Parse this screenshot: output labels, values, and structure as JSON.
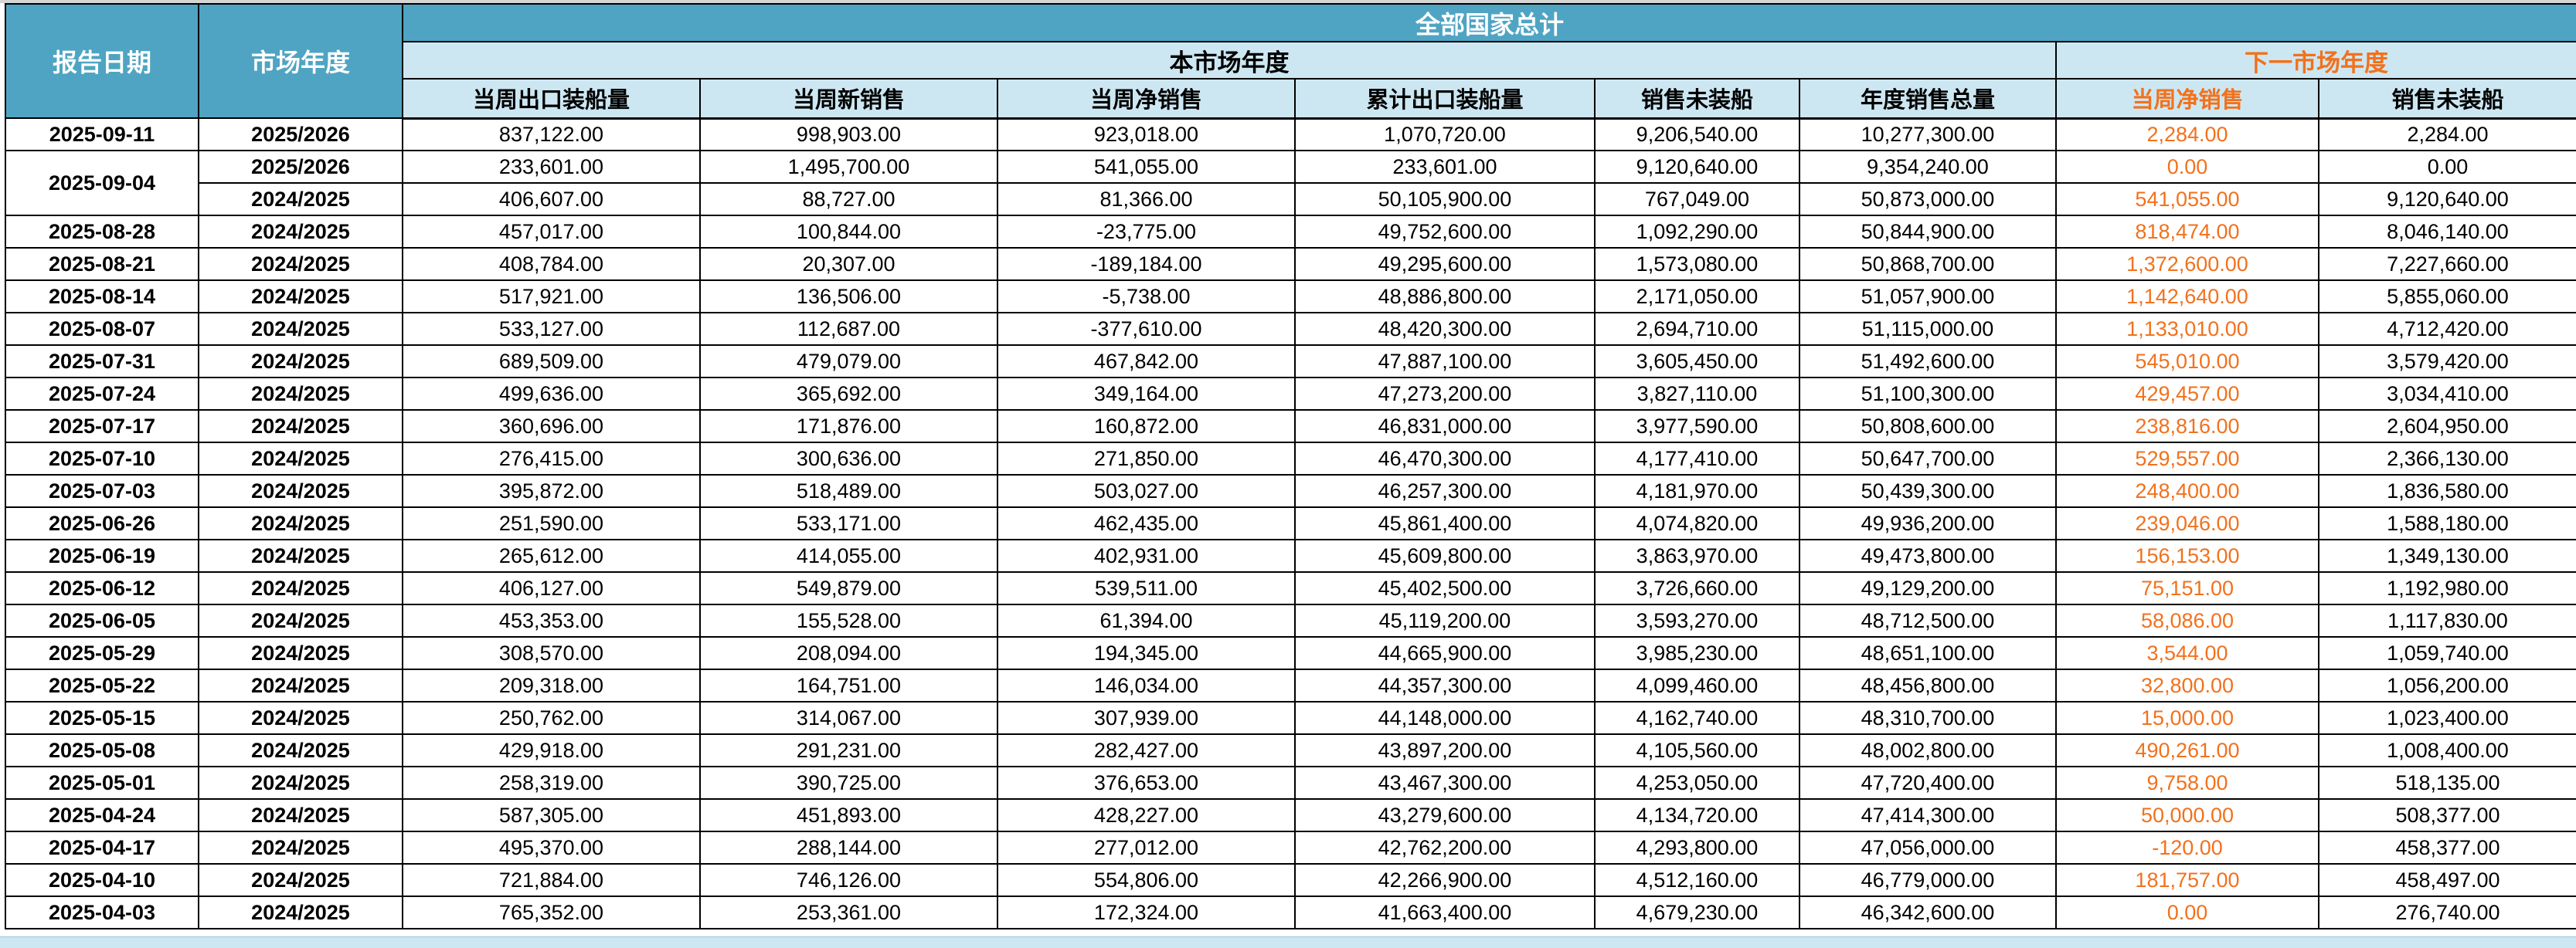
{
  "colors": {
    "header_blue": "#4FA4C3",
    "subheader_light_blue": "#CDE7F2",
    "accent_orange": "#F2711C",
    "grid_line": "#000000",
    "row_background": "#FFFFFF"
  },
  "table": {
    "corner": {
      "report_date": "报告日期",
      "market_year": "市场年度"
    },
    "group_header": "全部国家总计",
    "subgroups": {
      "current": "本市场年度",
      "next": "下一市场年度"
    },
    "columns": [
      "当周出口装船量",
      "当周新销售",
      "当周净销售",
      "累计出口装船量",
      "销售未装船",
      "年度销售总量",
      "当周净销售",
      "销售未装船"
    ],
    "rows": [
      {
        "date": "2025-09-11",
        "span": 1,
        "year": "2025/2026",
        "cells": [
          "837,122.00",
          "998,903.00",
          "923,018.00",
          "1,070,720.00",
          "9,206,540.00",
          "10,277,300.00",
          "2,284.00",
          "2,284.00"
        ]
      },
      {
        "date": "2025-09-04",
        "span": 2,
        "year": "2025/2026",
        "cells": [
          "233,601.00",
          "1,495,700.00",
          "541,055.00",
          "233,601.00",
          "9,120,640.00",
          "9,354,240.00",
          "0.00",
          "0.00"
        ]
      },
      {
        "date": null,
        "span": 0,
        "year": "2024/2025",
        "cells": [
          "406,607.00",
          "88,727.00",
          "81,366.00",
          "50,105,900.00",
          "767,049.00",
          "50,873,000.00",
          "541,055.00",
          "9,120,640.00"
        ]
      },
      {
        "date": "2025-08-28",
        "span": 1,
        "year": "2024/2025",
        "cells": [
          "457,017.00",
          "100,844.00",
          "-23,775.00",
          "49,752,600.00",
          "1,092,290.00",
          "50,844,900.00",
          "818,474.00",
          "8,046,140.00"
        ]
      },
      {
        "date": "2025-08-21",
        "span": 1,
        "year": "2024/2025",
        "cells": [
          "408,784.00",
          "20,307.00",
          "-189,184.00",
          "49,295,600.00",
          "1,573,080.00",
          "50,868,700.00",
          "1,372,600.00",
          "7,227,660.00"
        ]
      },
      {
        "date": "2025-08-14",
        "span": 1,
        "year": "2024/2025",
        "cells": [
          "517,921.00",
          "136,506.00",
          "-5,738.00",
          "48,886,800.00",
          "2,171,050.00",
          "51,057,900.00",
          "1,142,640.00",
          "5,855,060.00"
        ]
      },
      {
        "date": "2025-08-07",
        "span": 1,
        "year": "2024/2025",
        "cells": [
          "533,127.00",
          "112,687.00",
          "-377,610.00",
          "48,420,300.00",
          "2,694,710.00",
          "51,115,000.00",
          "1,133,010.00",
          "4,712,420.00"
        ]
      },
      {
        "date": "2025-07-31",
        "span": 1,
        "year": "2024/2025",
        "cells": [
          "689,509.00",
          "479,079.00",
          "467,842.00",
          "47,887,100.00",
          "3,605,450.00",
          "51,492,600.00",
          "545,010.00",
          "3,579,420.00"
        ]
      },
      {
        "date": "2025-07-24",
        "span": 1,
        "year": "2024/2025",
        "cells": [
          "499,636.00",
          "365,692.00",
          "349,164.00",
          "47,273,200.00",
          "3,827,110.00",
          "51,100,300.00",
          "429,457.00",
          "3,034,410.00"
        ]
      },
      {
        "date": "2025-07-17",
        "span": 1,
        "year": "2024/2025",
        "cells": [
          "360,696.00",
          "171,876.00",
          "160,872.00",
          "46,831,000.00",
          "3,977,590.00",
          "50,808,600.00",
          "238,816.00",
          "2,604,950.00"
        ]
      },
      {
        "date": "2025-07-10",
        "span": 1,
        "year": "2024/2025",
        "cells": [
          "276,415.00",
          "300,636.00",
          "271,850.00",
          "46,470,300.00",
          "4,177,410.00",
          "50,647,700.00",
          "529,557.00",
          "2,366,130.00"
        ]
      },
      {
        "date": "2025-07-03",
        "span": 1,
        "year": "2024/2025",
        "cells": [
          "395,872.00",
          "518,489.00",
          "503,027.00",
          "46,257,300.00",
          "4,181,970.00",
          "50,439,300.00",
          "248,400.00",
          "1,836,580.00"
        ]
      },
      {
        "date": "2025-06-26",
        "span": 1,
        "year": "2024/2025",
        "cells": [
          "251,590.00",
          "533,171.00",
          "462,435.00",
          "45,861,400.00",
          "4,074,820.00",
          "49,936,200.00",
          "239,046.00",
          "1,588,180.00"
        ]
      },
      {
        "date": "2025-06-19",
        "span": 1,
        "year": "2024/2025",
        "cells": [
          "265,612.00",
          "414,055.00",
          "402,931.00",
          "45,609,800.00",
          "3,863,970.00",
          "49,473,800.00",
          "156,153.00",
          "1,349,130.00"
        ]
      },
      {
        "date": "2025-06-12",
        "span": 1,
        "year": "2024/2025",
        "cells": [
          "406,127.00",
          "549,879.00",
          "539,511.00",
          "45,402,500.00",
          "3,726,660.00",
          "49,129,200.00",
          "75,151.00",
          "1,192,980.00"
        ]
      },
      {
        "date": "2025-06-05",
        "span": 1,
        "year": "2024/2025",
        "cells": [
          "453,353.00",
          "155,528.00",
          "61,394.00",
          "45,119,200.00",
          "3,593,270.00",
          "48,712,500.00",
          "58,086.00",
          "1,117,830.00"
        ]
      },
      {
        "date": "2025-05-29",
        "span": 1,
        "year": "2024/2025",
        "cells": [
          "308,570.00",
          "208,094.00",
          "194,345.00",
          "44,665,900.00",
          "3,985,230.00",
          "48,651,100.00",
          "3,544.00",
          "1,059,740.00"
        ]
      },
      {
        "date": "2025-05-22",
        "span": 1,
        "year": "2024/2025",
        "cells": [
          "209,318.00",
          "164,751.00",
          "146,034.00",
          "44,357,300.00",
          "4,099,460.00",
          "48,456,800.00",
          "32,800.00",
          "1,056,200.00"
        ]
      },
      {
        "date": "2025-05-15",
        "span": 1,
        "year": "2024/2025",
        "cells": [
          "250,762.00",
          "314,067.00",
          "307,939.00",
          "44,148,000.00",
          "4,162,740.00",
          "48,310,700.00",
          "15,000.00",
          "1,023,400.00"
        ]
      },
      {
        "date": "2025-05-08",
        "span": 1,
        "year": "2024/2025",
        "cells": [
          "429,918.00",
          "291,231.00",
          "282,427.00",
          "43,897,200.00",
          "4,105,560.00",
          "48,002,800.00",
          "490,261.00",
          "1,008,400.00"
        ]
      },
      {
        "date": "2025-05-01",
        "span": 1,
        "year": "2024/2025",
        "cells": [
          "258,319.00",
          "390,725.00",
          "376,653.00",
          "43,467,300.00",
          "4,253,050.00",
          "47,720,400.00",
          "9,758.00",
          "518,135.00"
        ]
      },
      {
        "date": "2025-04-24",
        "span": 1,
        "year": "2024/2025",
        "cells": [
          "587,305.00",
          "451,893.00",
          "428,227.00",
          "43,279,600.00",
          "4,134,720.00",
          "47,414,300.00",
          "50,000.00",
          "508,377.00"
        ]
      },
      {
        "date": "2025-04-17",
        "span": 1,
        "year": "2024/2025",
        "cells": [
          "495,370.00",
          "288,144.00",
          "277,012.00",
          "42,762,200.00",
          "4,293,800.00",
          "47,056,000.00",
          "-120.00",
          "458,377.00"
        ]
      },
      {
        "date": "2025-04-10",
        "span": 1,
        "year": "2024/2025",
        "cells": [
          "721,884.00",
          "746,126.00",
          "554,806.00",
          "42,266,900.00",
          "4,512,160.00",
          "46,779,000.00",
          "181,757.00",
          "458,497.00"
        ]
      },
      {
        "date": "2025-04-03",
        "span": 1,
        "year": "2024/2025",
        "cells": [
          "765,352.00",
          "253,361.00",
          "172,324.00",
          "41,663,400.00",
          "4,679,230.00",
          "46,342,600.00",
          "0.00",
          "276,740.00"
        ]
      }
    ]
  }
}
